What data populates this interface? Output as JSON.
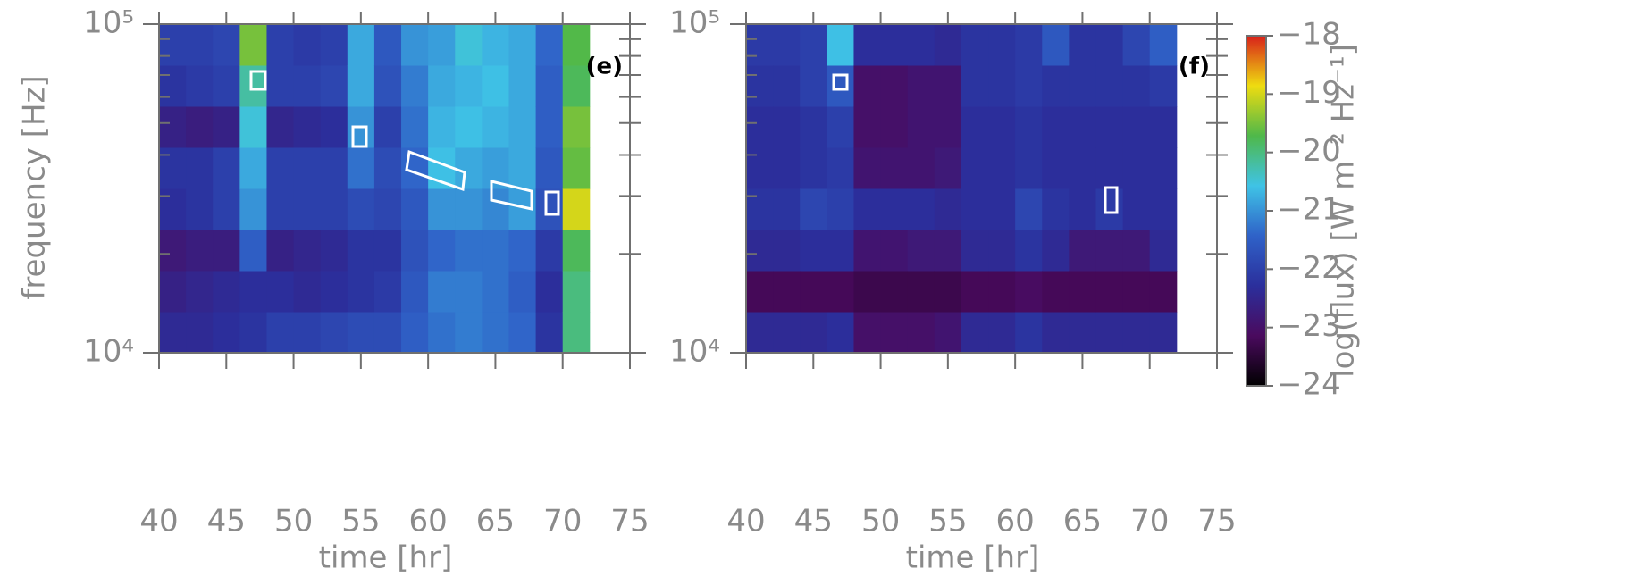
{
  "chart_data": [
    {
      "type": "heatmap",
      "label": "(e)",
      "x_label": "time [hr]",
      "y_label": "frequency [Hz]",
      "log_y": true,
      "xlim": [
        40,
        75
      ],
      "xticks": [
        40,
        45,
        50,
        55,
        60,
        65,
        70,
        75
      ],
      "ylim": [
        10000,
        100000
      ],
      "yticks": [
        {
          "value": 10000,
          "label": "10⁴"
        },
        {
          "value": 100000,
          "label": "10⁵"
        }
      ],
      "yminorticks": [
        20000,
        30000,
        40000,
        50000,
        60000,
        70000,
        80000,
        90000
      ],
      "x_bins": [
        40,
        42,
        44,
        46,
        48,
        50,
        52,
        54,
        56,
        58,
        60,
        62,
        64,
        66,
        68,
        70,
        72
      ],
      "y_bins": [
        10000,
        13335,
        17783,
        23714,
        31623,
        42170,
        56234,
        74989,
        100000
      ],
      "values": [
        [
          -22.4,
          -22.6,
          -22.8,
          -22.3,
          -22.2,
          -22.6,
          -22.2,
          -22.0
        ],
        [
          -22.4,
          -22.5,
          -22.7,
          -22.2,
          -22.2,
          -22.7,
          -22.1,
          -22.0
        ],
        [
          -22.3,
          -22.4,
          -22.7,
          -22.0,
          -22.0,
          -22.6,
          -22.0,
          -21.9
        ],
        [
          -22.2,
          -22.3,
          -21.5,
          -21.0,
          -20.8,
          -20.5,
          -20.2,
          -19.5
        ],
        [
          -22.0,
          -22.3,
          -22.6,
          -22.0,
          -22.0,
          -22.5,
          -22.0,
          -22.0
        ],
        [
          -22.0,
          -22.4,
          -22.5,
          -22.0,
          -22.0,
          -22.4,
          -22.0,
          -22.1
        ],
        [
          -21.9,
          -22.3,
          -22.4,
          -22.0,
          -22.0,
          -22.3,
          -21.9,
          -22.0
        ],
        [
          -21.8,
          -22.2,
          -22.2,
          -21.8,
          -21.3,
          -21.0,
          -20.8,
          -20.8
        ],
        [
          -21.8,
          -22.1,
          -22.2,
          -21.9,
          -21.8,
          -22.0,
          -21.7,
          -21.6
        ],
        [
          -21.5,
          -21.6,
          -21.7,
          -21.6,
          -21.4,
          -21.3,
          -21.2,
          -21.0
        ],
        [
          -21.3,
          -21.2,
          -21.4,
          -21.0,
          -20.6,
          -20.7,
          -20.8,
          -20.9
        ],
        [
          -21.2,
          -21.2,
          -21.3,
          -21.0,
          -20.8,
          -20.6,
          -20.7,
          -20.5
        ],
        [
          -21.3,
          -21.3,
          -21.3,
          -21.1,
          -20.9,
          -20.7,
          -20.6,
          -20.7
        ],
        [
          -21.4,
          -21.5,
          -21.4,
          -20.9,
          -20.8,
          -20.8,
          -20.8,
          -20.8
        ],
        [
          -22.2,
          -22.3,
          -22.1,
          -21.7,
          -21.6,
          -21.5,
          -21.5,
          -21.4
        ],
        [
          -20.0,
          -20.0,
          -19.8,
          -19.0,
          -19.6,
          -19.5,
          -19.8,
          -19.7
        ]
      ]
    },
    {
      "type": "heatmap",
      "label": "(f)",
      "x_label": "time [hr]",
      "log_y": true,
      "xlim": [
        40,
        75
      ],
      "xticks": [
        40,
        45,
        50,
        55,
        60,
        65,
        70,
        75
      ],
      "ylim": [
        10000,
        100000
      ],
      "yticks": [
        {
          "value": 10000,
          "label": "10⁴"
        },
        {
          "value": 100000,
          "label": "10⁵"
        }
      ],
      "yminorticks": [
        20000,
        30000,
        40000,
        50000,
        60000,
        70000,
        80000,
        90000
      ],
      "x_bins": [
        40,
        42,
        44,
        46,
        48,
        50,
        52,
        54,
        56,
        58,
        60,
        62,
        64,
        66,
        68,
        70,
        72
      ],
      "y_bins": [
        10000,
        13335,
        17783,
        23714,
        31623,
        42170,
        56234,
        74989,
        100000
      ],
      "values": [
        [
          -22.4,
          -23.2,
          -22.4,
          -22.2,
          -22.3,
          -22.3,
          -22.2,
          -22.1
        ],
        [
          -22.4,
          -23.2,
          -22.4,
          -22.2,
          -22.3,
          -22.3,
          -22.2,
          -22.1
        ],
        [
          -22.4,
          -23.2,
          -22.3,
          -21.9,
          -22.2,
          -22.2,
          -22.0,
          -22.0
        ],
        [
          -22.3,
          -23.2,
          -22.3,
          -22.0,
          -22.1,
          -22.0,
          -21.6,
          -20.6
        ],
        [
          -23.0,
          -23.3,
          -22.9,
          -22.3,
          -22.9,
          -23.0,
          -23.0,
          -22.3
        ],
        [
          -23.0,
          -23.3,
          -22.9,
          -22.3,
          -22.9,
          -23.0,
          -23.0,
          -22.3
        ],
        [
          -23.0,
          -23.3,
          -22.8,
          -22.3,
          -22.9,
          -22.9,
          -22.9,
          -22.3
        ],
        [
          -22.9,
          -23.3,
          -22.8,
          -22.4,
          -22.8,
          -22.9,
          -22.9,
          -22.4
        ],
        [
          -22.4,
          -23.2,
          -22.4,
          -22.3,
          -22.3,
          -22.3,
          -22.2,
          -22.2
        ],
        [
          -22.4,
          -23.2,
          -22.4,
          -22.3,
          -22.3,
          -22.3,
          -22.2,
          -22.2
        ],
        [
          -22.2,
          -23.1,
          -22.2,
          -21.9,
          -22.2,
          -22.2,
          -22.1,
          -22.1
        ],
        [
          -22.4,
          -23.2,
          -22.4,
          -22.2,
          -22.3,
          -22.3,
          -22.2,
          -21.6
        ],
        [
          -22.4,
          -23.2,
          -22.8,
          -22.3,
          -22.3,
          -22.3,
          -22.2,
          -22.2
        ],
        [
          -22.4,
          -23.2,
          -22.8,
          -22.1,
          -22.3,
          -22.3,
          -22.2,
          -22.2
        ],
        [
          -22.4,
          -23.2,
          -22.8,
          -22.3,
          -22.3,
          -22.3,
          -22.2,
          -21.9
        ],
        [
          -22.4,
          -23.2,
          -22.4,
          -22.3,
          -22.3,
          -22.3,
          -22.1,
          -21.5
        ]
      ]
    }
  ],
  "colorbar": {
    "label": "log(flux) [W m⁻² Hz⁻¹]",
    "lim": [
      -24,
      -18
    ],
    "ticks": [
      {
        "value": -18,
        "label": "−18"
      },
      {
        "value": -19,
        "label": "−19"
      },
      {
        "value": -20,
        "label": "−20"
      },
      {
        "value": -21,
        "label": "−21"
      },
      {
        "value": -22,
        "label": "−22"
      },
      {
        "value": -23,
        "label": "−23"
      },
      {
        "value": -24,
        "label": "−24"
      }
    ],
    "colormap": [
      "#000000",
      "#4a0a5e",
      "#2b2f9c",
      "#2f62c8",
      "#3fc3e6",
      "#4fb84a",
      "#eedc10",
      "#d8201a"
    ]
  }
}
